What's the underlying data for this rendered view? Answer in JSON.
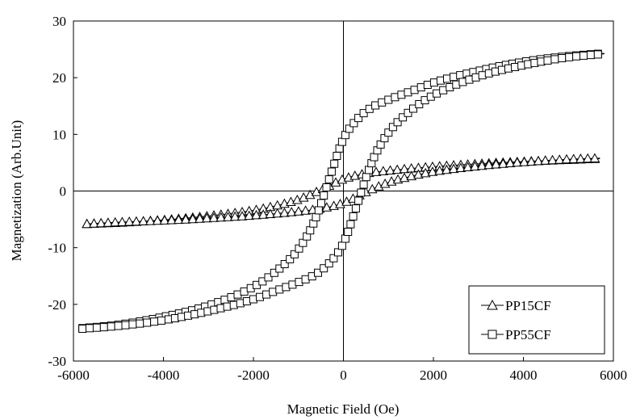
{
  "chart_data": {
    "type": "scatter",
    "title": "",
    "xlabel": "Magnetic Field (Oe)",
    "ylabel": "Magnetization (Arb.Unit)",
    "xlim": [
      -6000,
      6000
    ],
    "ylim": [
      -30,
      30
    ],
    "x_ticks": [
      "-6000",
      "-4000",
      "-2000",
      "0",
      "2000",
      "4000",
      "6000"
    ],
    "y_ticks": [
      "-30",
      "-20",
      "-10",
      "0",
      "10",
      "20",
      "30"
    ],
    "grid": false,
    "zero_lines": true,
    "legend": {
      "position": "bottom-right",
      "entries": [
        "PP15CF",
        "PP55CF"
      ]
    },
    "series": [
      {
        "name": "PP15CF",
        "marker": "triangle",
        "upper_branch": {
          "x": [
            -5700,
            -5000,
            -4000,
            -3000,
            -2000,
            -1500,
            -1000,
            -500,
            0,
            500,
            1000,
            2000,
            3000,
            4000,
            5000,
            5700
          ],
          "y": [
            -5.8,
            -5.6,
            -5.1,
            -4.4,
            -3.4,
            -2.6,
            -1.5,
            0.2,
            2.1,
            3.1,
            3.6,
            4.3,
            4.8,
            5.2,
            5.5,
            5.7
          ]
        },
        "lower_branch": {
          "x": [
            -5700,
            -5000,
            -4000,
            -3000,
            -2000,
            -1000,
            -500,
            0,
            500,
            1000,
            1500,
            2000,
            3000,
            4000,
            5000,
            5700
          ],
          "y": [
            -5.8,
            -5.5,
            -5.2,
            -4.8,
            -4.3,
            -3.6,
            -3.1,
            -2.1,
            -0.2,
            1.5,
            2.6,
            3.4,
            4.4,
            5.1,
            5.6,
            5.8
          ]
        }
      },
      {
        "name": "PP55CF",
        "marker": "square",
        "upper_branch": {
          "x": [
            -5800,
            -5000,
            -4000,
            -3000,
            -2000,
            -1500,
            -1000,
            -700,
            -500,
            -300,
            0,
            300,
            600,
            1000,
            1500,
            2000,
            3000,
            4000,
            5000,
            5800
          ],
          "y": [
            -24.2,
            -23.6,
            -22.2,
            -20.2,
            -16.9,
            -14.2,
            -10.3,
            -6.3,
            -2.3,
            2.5,
            9.2,
            12.6,
            14.6,
            16.1,
            17.6,
            19.1,
            21.2,
            22.8,
            23.8,
            24.3
          ]
        },
        "lower_branch": {
          "x": [
            -5800,
            -5000,
            -4000,
            -3000,
            -2000,
            -1500,
            -1000,
            -600,
            -300,
            0,
            300,
            500,
            700,
            1000,
            1500,
            2000,
            3000,
            4000,
            5000,
            5800
          ],
          "y": [
            -24.3,
            -23.8,
            -22.8,
            -21.2,
            -19.1,
            -17.6,
            -16.1,
            -14.6,
            -12.6,
            -9.2,
            -2.5,
            2.3,
            6.3,
            10.3,
            14.2,
            16.9,
            20.2,
            22.2,
            23.6,
            24.2
          ]
        }
      }
    ]
  }
}
